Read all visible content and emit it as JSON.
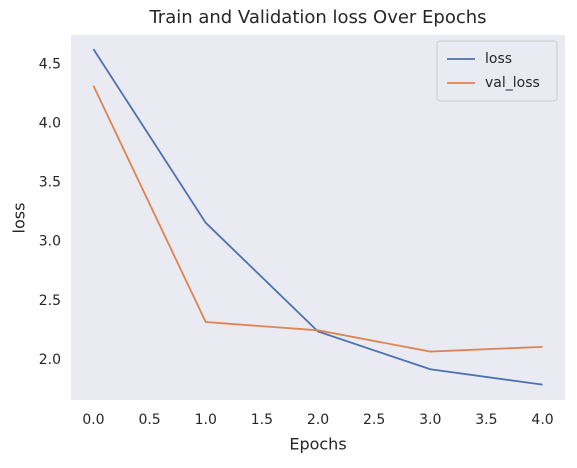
{
  "chart_data": {
    "type": "line",
    "title": "Train and Validation loss Over Epochs",
    "xlabel": "Epochs",
    "ylabel": "loss",
    "x": [
      0,
      1,
      2,
      3,
      4
    ],
    "series": [
      {
        "name": "loss",
        "color": "#4c72b0",
        "values": [
          4.63,
          3.16,
          2.24,
          1.92,
          1.79
        ]
      },
      {
        "name": "val_loss",
        "color": "#dd8452",
        "values": [
          4.32,
          2.32,
          2.25,
          2.07,
          2.11
        ]
      }
    ],
    "xlim": [
      -0.2,
      4.2
    ],
    "xticks": [
      {
        "value": 0,
        "label": "0.0"
      },
      0.5,
      {
        "value": 1,
        "label": "1.0"
      },
      1.5,
      {
        "value": 2,
        "label": "2.0"
      },
      2.5,
      {
        "value": 3,
        "label": "3.0"
      },
      3.5,
      {
        "value": 4,
        "label": "4.0"
      }
    ],
    "ylim": [
      1.66,
      4.75
    ],
    "yticks": [
      {
        "value": 2,
        "label": "2.0"
      },
      2.5,
      {
        "value": 3,
        "label": "3.0"
      },
      3.5,
      {
        "value": 4,
        "label": "4.0"
      },
      4.5
    ],
    "grid": false,
    "legend": "upper right",
    "background": "#eaeaf2"
  }
}
